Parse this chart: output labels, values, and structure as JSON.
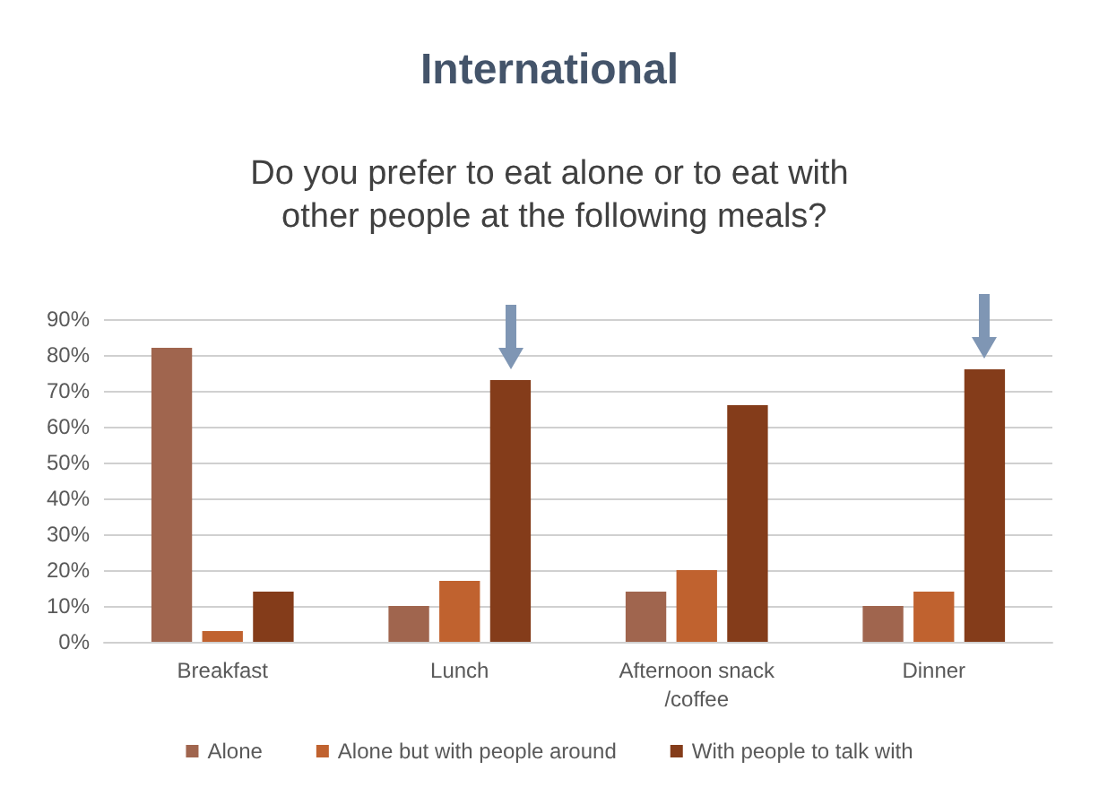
{
  "chart_data": {
    "type": "bar",
    "title": "International",
    "subtitle": "Do you prefer to eat alone or to eat with other people at the following meals?",
    "categories": [
      "Breakfast",
      "Lunch",
      "Afternoon snack/coffee",
      "Dinner"
    ],
    "series": [
      {
        "name": "Alone",
        "color": "#a0654e",
        "values": [
          82,
          10,
          14,
          10
        ]
      },
      {
        "name": "Alone but with people around",
        "color": "#c0622f",
        "values": [
          3,
          17,
          20,
          14
        ]
      },
      {
        "name": "With people to talk with",
        "color": "#843c1a",
        "values": [
          14,
          73,
          66,
          76
        ]
      }
    ],
    "ylim": [
      0,
      90
    ],
    "yticks": [
      {
        "value": 0,
        "label": "0%"
      },
      {
        "value": 10,
        "label": "10%"
      },
      {
        "value": 20,
        "label": "20%"
      },
      {
        "value": 30,
        "label": "30%"
      },
      {
        "value": 40,
        "label": "40%"
      },
      {
        "value": 50,
        "label": "50%"
      },
      {
        "value": 60,
        "label": "60%"
      },
      {
        "value": 70,
        "label": "70%"
      },
      {
        "value": 80,
        "label": "80%"
      },
      {
        "value": 90,
        "label": "90%"
      }
    ],
    "grid": "y",
    "legend": "bottom"
  }
}
